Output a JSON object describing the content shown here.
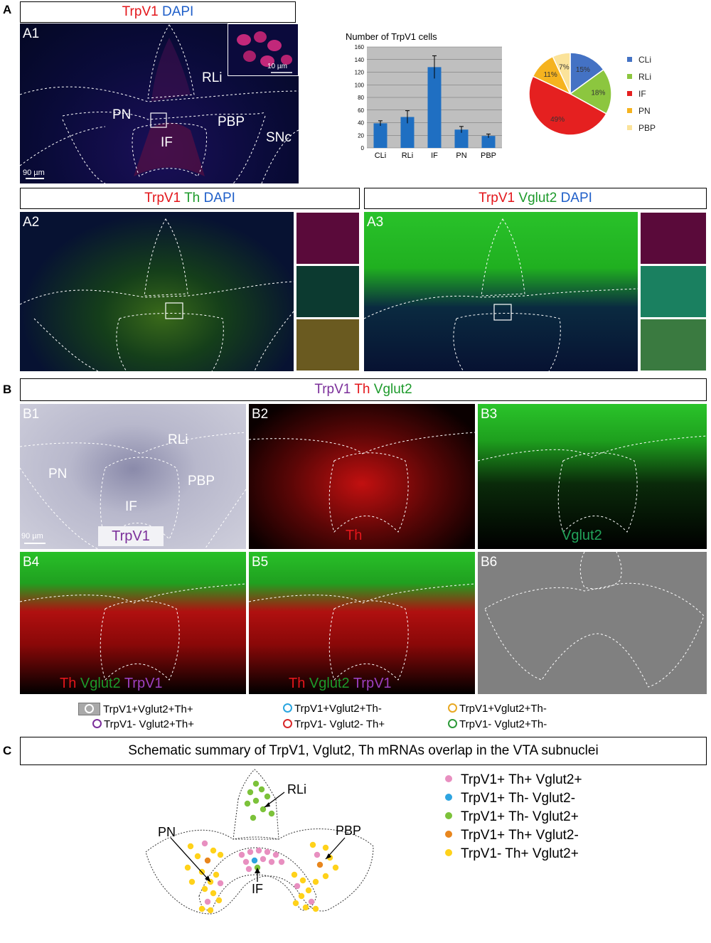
{
  "panel_letters": {
    "a": "A",
    "b": "B",
    "c": "C"
  },
  "headers": {
    "a1": {
      "t1": "TrpV1",
      "t2": "DAPI"
    },
    "a2": {
      "t1": "TrpV1",
      "t2": "Th",
      "t3": "DAPI"
    },
    "a3": {
      "t1": "TrpV1",
      "t2": "Vglut2",
      "t3": "DAPI"
    },
    "b": {
      "t1": "TrpV1",
      "t2": "Th",
      "t3": "Vglut2"
    },
    "c": "Schematic summary of TrpV1, Vglut2, Th mRNAs overlap in the VTA subnuclei"
  },
  "subpanels": {
    "a1": "A1",
    "a2": "A2",
    "a3": "A3",
    "b1": "B1",
    "b2": "B2",
    "b3": "B3",
    "b4": "B4",
    "b5": "B5",
    "b6": "B6"
  },
  "a1_regions": {
    "rli": "RLi",
    "pn": "PN",
    "if": "IF",
    "pbp": "PBP",
    "snc": "SNc",
    "scale": "90 µm",
    "inset_scale": "10 µm"
  },
  "b1_regions": {
    "rli": "RLi",
    "pn": "PN",
    "if": "IF",
    "pbp": "PBP",
    "scale": "90 µm",
    "probe": "TrpV1"
  },
  "b_channels": {
    "b2": "Th",
    "b3": "Vglut2",
    "b4": {
      "t1": "Th",
      "t2": "Vglut2",
      "t3": "TrpV1"
    },
    "b5": {
      "t1": "Th",
      "t2": "Vglut2",
      "t3": "TrpV1"
    }
  },
  "b_legend": [
    {
      "text": "TrpV1+Vglut2+Th+",
      "color": "#ffffff",
      "boxed": true
    },
    {
      "text": "TrpV1- Vglut2+Th+",
      "color": "#7b2f9a"
    },
    {
      "text": "TrpV1+Vglut2+Th-",
      "color": "#2aa6e0"
    },
    {
      "text": "TrpV1- Vglut2- Th+",
      "color": "#d8282a"
    },
    {
      "text": "TrpV1+Vglut2+Th-",
      "color": "#e8a823"
    },
    {
      "text": "TrpV1- Vglut2+Th-",
      "color": "#2e9a3a"
    }
  ],
  "c_regions": {
    "rli": "RLi",
    "pn": "PN",
    "pbp": "PBP",
    "if": "IF"
  },
  "c_legend": [
    {
      "text": "TrpV1+ Th+ Vglut2+",
      "color": "#e88fc0"
    },
    {
      "text": "TrpV1+ Th-  Vglut2-",
      "color": "#2ea4e0"
    },
    {
      "text": "TrpV1+ Th-  Vglut2+",
      "color": "#7cc23a"
    },
    {
      "text": "TrpV1+ Th+ Vglut2-",
      "color": "#e8861e"
    },
    {
      "text": "TrpV1-  Th+ Vglut2+",
      "color": "#ffd21a"
    }
  ],
  "chart_data": [
    {
      "type": "bar",
      "title": "Number of TrpV1 cells",
      "categories": [
        "CLi",
        "RLi",
        "IF",
        "PN",
        "PBP"
      ],
      "values": [
        39,
        49,
        128,
        29,
        19
      ],
      "errors": [
        4,
        10,
        18,
        5,
        3
      ],
      "yticks": [
        "0",
        "20",
        "40",
        "60",
        "80",
        "100",
        "120",
        "140",
        "160"
      ],
      "ylim": [
        0,
        160
      ],
      "grid": true,
      "bar_color": "#1f6fc2",
      "background": "#bfbfbf"
    },
    {
      "type": "pie",
      "categories": [
        "CLi",
        "RLi",
        "IF",
        "PN",
        "PBP"
      ],
      "values": [
        15,
        18,
        49,
        11,
        7
      ],
      "labels": [
        "15%",
        "18%",
        "49%",
        "11%",
        "7%"
      ],
      "colors": [
        "#4472c4",
        "#8cc63f",
        "#e52020",
        "#f5b31f",
        "#fbe39a"
      ],
      "legend": "right"
    }
  ]
}
